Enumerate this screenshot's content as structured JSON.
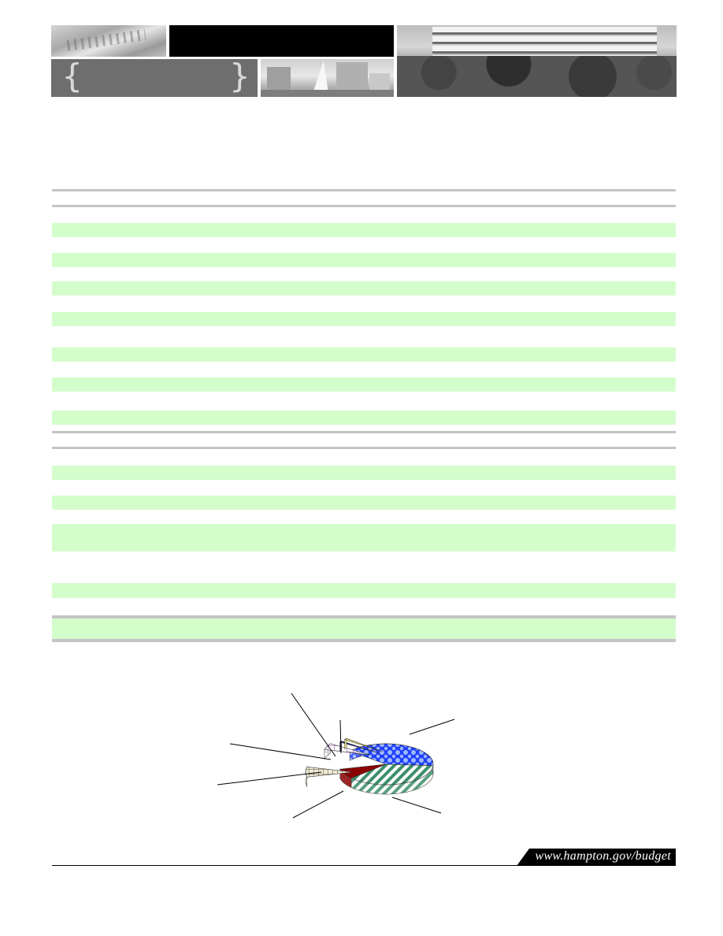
{
  "banner": {
    "left_brace": "{",
    "right_brace": "}"
  },
  "footer": {
    "url": "www.hampton.gov/budget"
  },
  "chart_data": {
    "type": "pie",
    "title": "",
    "slices": [
      {
        "pattern": "blue-checker",
        "color": "#1f4fff",
        "value": 40
      },
      {
        "pattern": "green-diagonal-stripes",
        "color": "#3c8f6a",
        "value": 37
      },
      {
        "pattern": "dark-red",
        "color": "#8b0000",
        "value": 8
      },
      {
        "pattern": "tan-grid",
        "color": "#c8c39a",
        "value": 8
      },
      {
        "pattern": "purple-grid",
        "color": "#b07cc6",
        "value": 5
      },
      {
        "pattern": "navy",
        "color": "#1a237e",
        "value": 1
      },
      {
        "pattern": "yellow",
        "color": "#f5e66a",
        "value": 1
      }
    ]
  }
}
